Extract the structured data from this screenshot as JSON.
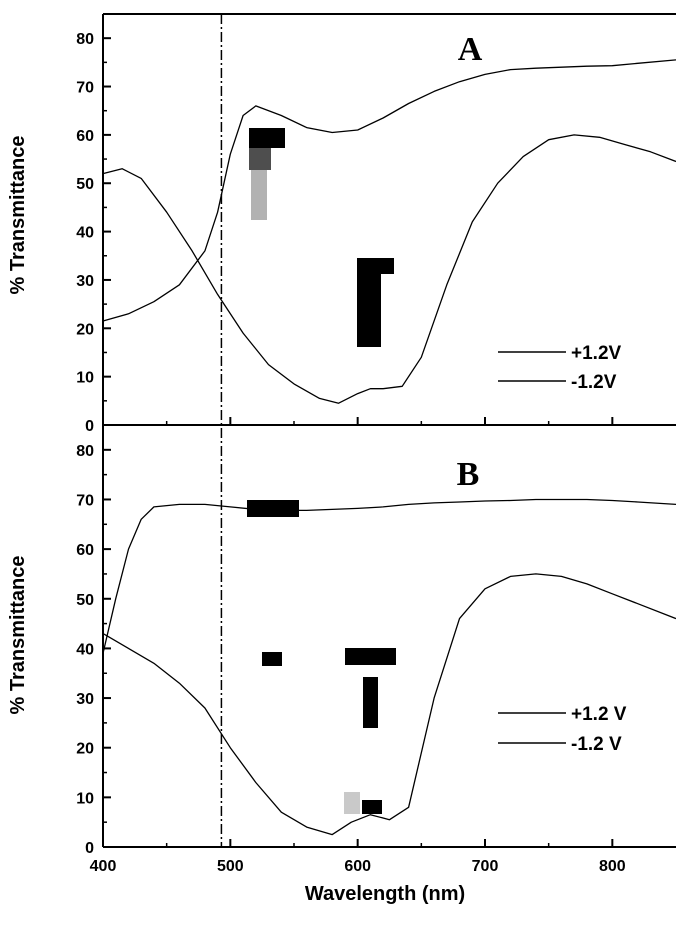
{
  "chart_data": {
    "type": "line",
    "xlabel": "Wavelength (nm)",
    "ylabel": "% Transmittance",
    "xlim": [
      400,
      850
    ],
    "ylim": [
      0,
      85
    ],
    "x_ticks": [
      "400",
      "500",
      "600",
      "700",
      "800"
    ],
    "y_ticks": [
      "0",
      "10",
      "20",
      "30",
      "40",
      "50",
      "60",
      "70",
      "80"
    ],
    "reference_line_x": 493,
    "panels": [
      {
        "label": "A",
        "legend": [
          "+1.2V",
          "-1.2V"
        ],
        "series": [
          {
            "name": "+1.2V",
            "x": [
              400,
              420,
              440,
              460,
              480,
              490,
              500,
              510,
              520,
              540,
              560,
              580,
              600,
              620,
              640,
              660,
              680,
              700,
              720,
              740,
              760,
              780,
              800,
              820,
              850
            ],
            "y": [
              21.5,
              23,
              25.5,
              29,
              36,
              44,
              56,
              64,
              66,
              64,
              61.5,
              60.5,
              61,
              63.5,
              66.5,
              69,
              71,
              72.5,
              73.5,
              73.8,
              74,
              74.2,
              74.3,
              74.8,
              75.5
            ]
          },
          {
            "name": "-1.2V",
            "x": [
              400,
              415,
              430,
              450,
              470,
              490,
              510,
              530,
              550,
              570,
              585,
              600,
              610,
              620,
              635,
              650,
              670,
              690,
              710,
              730,
              750,
              770,
              790,
              810,
              830,
              850
            ],
            "y": [
              52,
              53,
              51,
              44,
              36,
              27,
              19,
              12.5,
              8.5,
              5.5,
              4.5,
              6.5,
              7.5,
              7.5,
              8,
              14,
              29,
              42,
              50,
              55.5,
              59,
              60,
              59.5,
              58,
              56.5,
              54.5
            ]
          }
        ]
      },
      {
        "label": "B",
        "legend": [
          "+1.2 V",
          "-1.2 V"
        ],
        "series": [
          {
            "name": "+1.2 V",
            "x": [
              400,
              410,
              420,
              430,
              440,
              460,
              480,
              500,
              520,
              540,
              560,
              580,
              600,
              620,
              640,
              660,
              680,
              700,
              720,
              740,
              760,
              780,
              800,
              820,
              850
            ],
            "y": [
              39,
              50,
              60,
              66,
              68.5,
              69,
              69,
              68.5,
              68,
              67.8,
              67.8,
              68,
              68.2,
              68.5,
              69,
              69.3,
              69.5,
              69.7,
              69.8,
              70,
              70,
              70,
              69.8,
              69.5,
              69
            ]
          },
          {
            "name": "-1.2 V",
            "x": [
              400,
              420,
              440,
              460,
              480,
              500,
              520,
              540,
              560,
              580,
              595,
              610,
              625,
              640,
              660,
              680,
              700,
              720,
              740,
              760,
              780,
              800,
              820,
              850
            ],
            "y": [
              43,
              40,
              37,
              33,
              28,
              20,
              13,
              7,
              4,
              2.5,
              5,
              6.5,
              5.5,
              8,
              30,
              46,
              52,
              54.5,
              55,
              54.5,
              53,
              51,
              49,
              46
            ]
          }
        ]
      }
    ]
  }
}
